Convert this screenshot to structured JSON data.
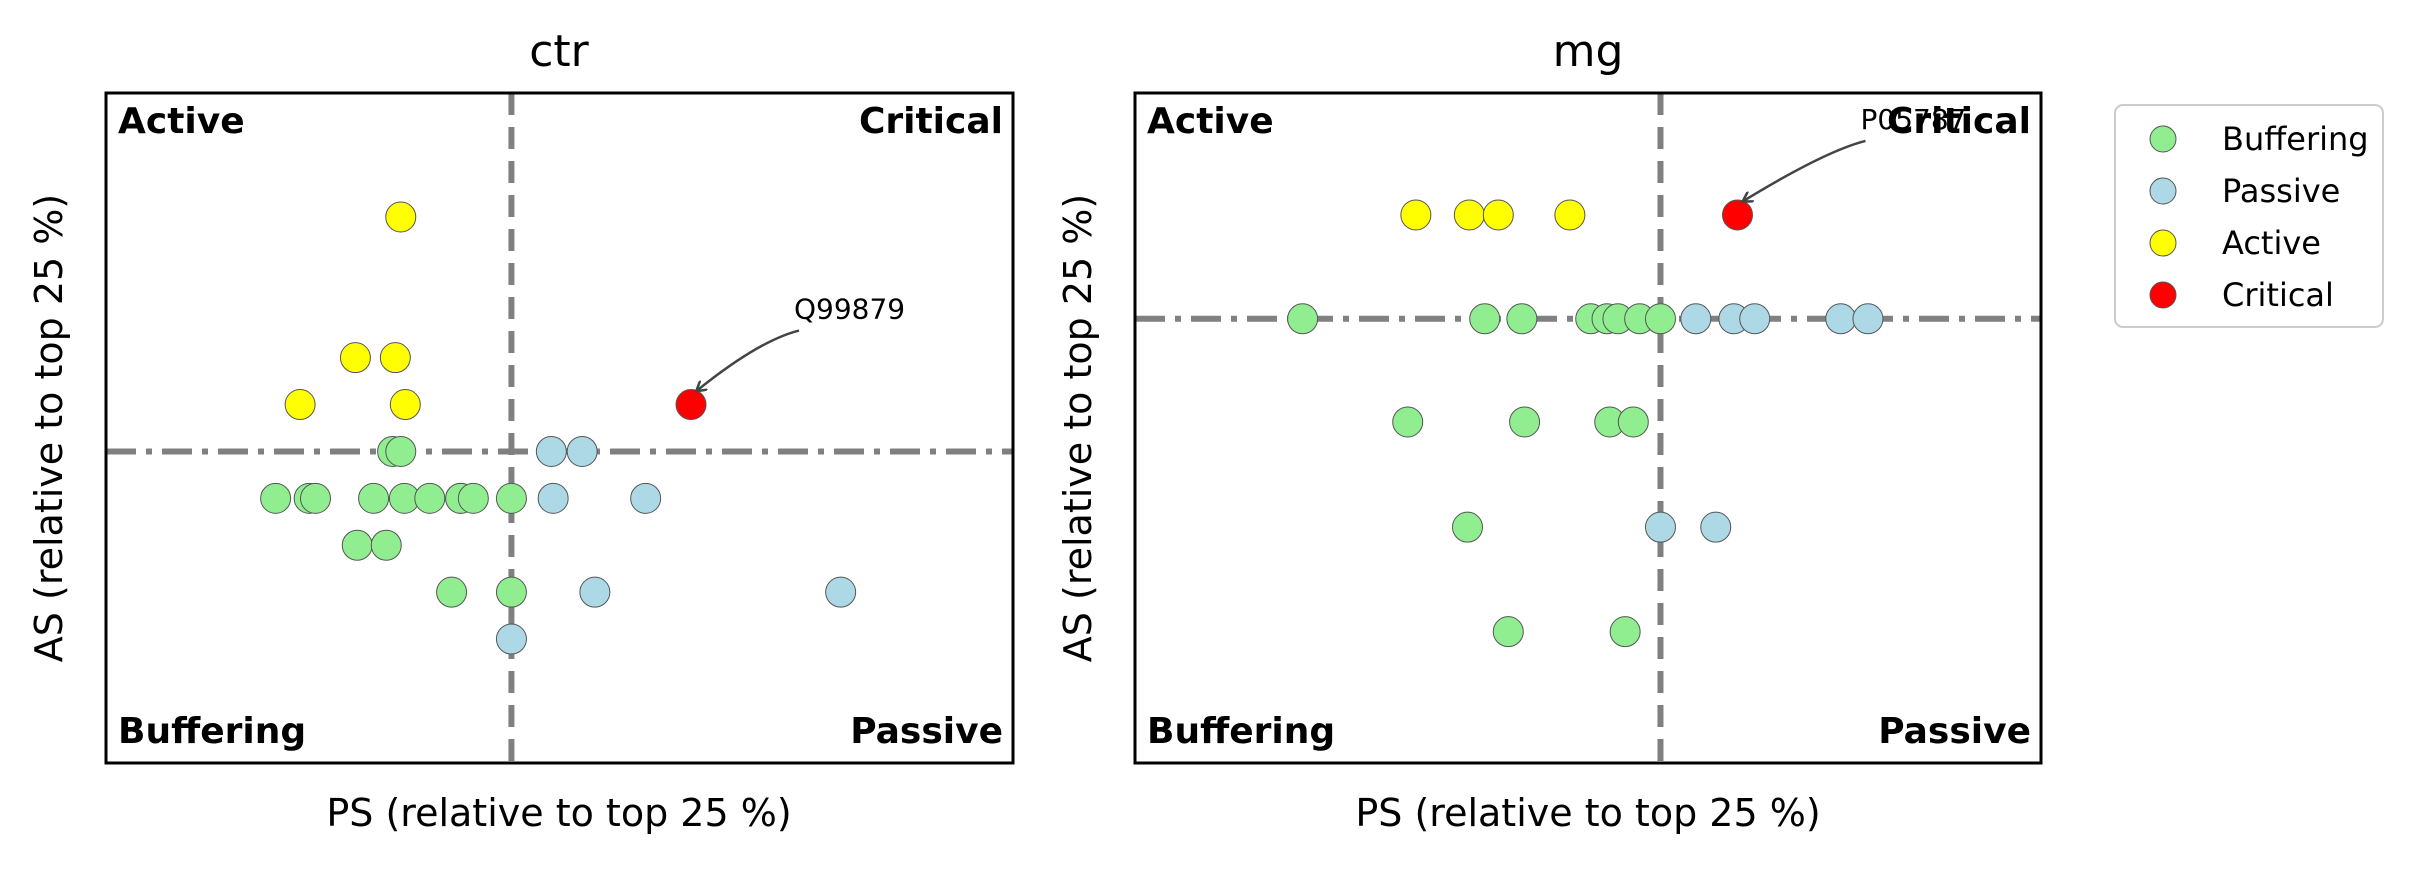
{
  "chart_data": [
    {
      "type": "scatter",
      "title": "ctr",
      "xlabel": "PS (relative to top 25 %)",
      "ylabel": "AS (relative to top 25 %)",
      "xlim": [
        0,
        100
      ],
      "ylim": [
        0,
        100
      ],
      "vline_x": 44.7,
      "hline_y": 46.5,
      "quadrant_labels": {
        "top_left": "Active",
        "top_right": "Critical",
        "bottom_left": "Buffering",
        "bottom_right": "Passive"
      },
      "annotation": {
        "text": "Q99879",
        "target": [
          64.5,
          53.5
        ]
      },
      "series": [
        {
          "name": "Buffering",
          "color": "#90ee90",
          "points": [
            [
              31.6,
              46.5
            ],
            [
              32.5,
              46.5
            ],
            [
              18.7,
              39.5
            ],
            [
              22.4,
              39.5
            ],
            [
              23.1,
              39.5
            ],
            [
              29.5,
              39.5
            ],
            [
              32.9,
              39.5
            ],
            [
              35.7,
              39.5
            ],
            [
              39.1,
              39.5
            ],
            [
              39.1,
              39.5
            ],
            [
              40.5,
              39.5
            ],
            [
              44.7,
              39.5
            ],
            [
              27.7,
              32.5
            ],
            [
              30.9,
              32.5
            ],
            [
              38.1,
              25.5
            ],
            [
              44.7,
              25.5
            ]
          ]
        },
        {
          "name": "Passive",
          "color": "#add8e6",
          "points": [
            [
              49.1,
              46.5
            ],
            [
              52.5,
              46.5
            ],
            [
              49.3,
              39.5
            ],
            [
              59.5,
              39.5
            ],
            [
              53.9,
              25.5
            ],
            [
              81.0,
              25.5
            ],
            [
              44.7,
              18.5
            ]
          ]
        },
        {
          "name": "Active",
          "color": "#ffff00",
          "points": [
            [
              32.5,
              81.5
            ],
            [
              27.5,
              60.5
            ],
            [
              31.9,
              60.5
            ],
            [
              21.4,
              53.5
            ],
            [
              33.0,
              53.5
            ]
          ]
        },
        {
          "name": "Critical",
          "color": "#ff0000",
          "points": [
            [
              64.5,
              53.5
            ]
          ]
        }
      ]
    },
    {
      "type": "scatter",
      "title": "mg",
      "xlabel": "PS (relative to top 25 %)",
      "ylabel": "AS (relative to top 25 %)",
      "xlim": [
        0,
        100
      ],
      "ylim": [
        0,
        100
      ],
      "vline_x": 58,
      "hline_y": 66.3,
      "quadrant_labels": {
        "top_left": "Active",
        "top_right": "Critical",
        "bottom_left": "Buffering",
        "bottom_right": "Passive"
      },
      "annotation": {
        "text": "P05787",
        "target": [
          66.5,
          81.8
        ]
      },
      "series": [
        {
          "name": "Buffering",
          "color": "#90ee90",
          "points": [
            [
              18.5,
              66.3
            ],
            [
              38.6,
              66.3
            ],
            [
              42.7,
              66.3
            ],
            [
              50.3,
              66.3
            ],
            [
              52.1,
              66.3
            ],
            [
              53.3,
              66.3
            ],
            [
              55.7,
              66.3
            ],
            [
              58.0,
              66.3
            ],
            [
              30.1,
              50.9
            ],
            [
              43.0,
              50.9
            ],
            [
              52.4,
              50.9
            ],
            [
              55.0,
              50.9
            ],
            [
              36.7,
              35.2
            ],
            [
              41.2,
              19.6
            ],
            [
              54.1,
              19.6
            ]
          ]
        },
        {
          "name": "Passive",
          "color": "#add8e6",
          "points": [
            [
              61.9,
              66.3
            ],
            [
              66.1,
              66.3
            ],
            [
              68.4,
              66.3
            ],
            [
              77.9,
              66.3
            ],
            [
              80.9,
              66.3
            ],
            [
              58.0,
              35.2
            ],
            [
              64.1,
              35.2
            ]
          ]
        },
        {
          "name": "Active",
          "color": "#ffff00",
          "points": [
            [
              31.0,
              81.8
            ],
            [
              36.9,
              81.8
            ],
            [
              40.1,
              81.8
            ],
            [
              48.0,
              81.8
            ]
          ]
        },
        {
          "name": "Critical",
          "color": "#ff0000",
          "points": [
            [
              66.5,
              81.8
            ]
          ]
        }
      ]
    }
  ],
  "legend": {
    "placement": "right",
    "items": [
      {
        "label": "Buffering",
        "color": "#90ee90"
      },
      {
        "label": "Passive",
        "color": "#add8e6"
      },
      {
        "label": "Active",
        "color": "#ffff00"
      },
      {
        "label": "Critical",
        "color": "#ff0000"
      }
    ]
  }
}
